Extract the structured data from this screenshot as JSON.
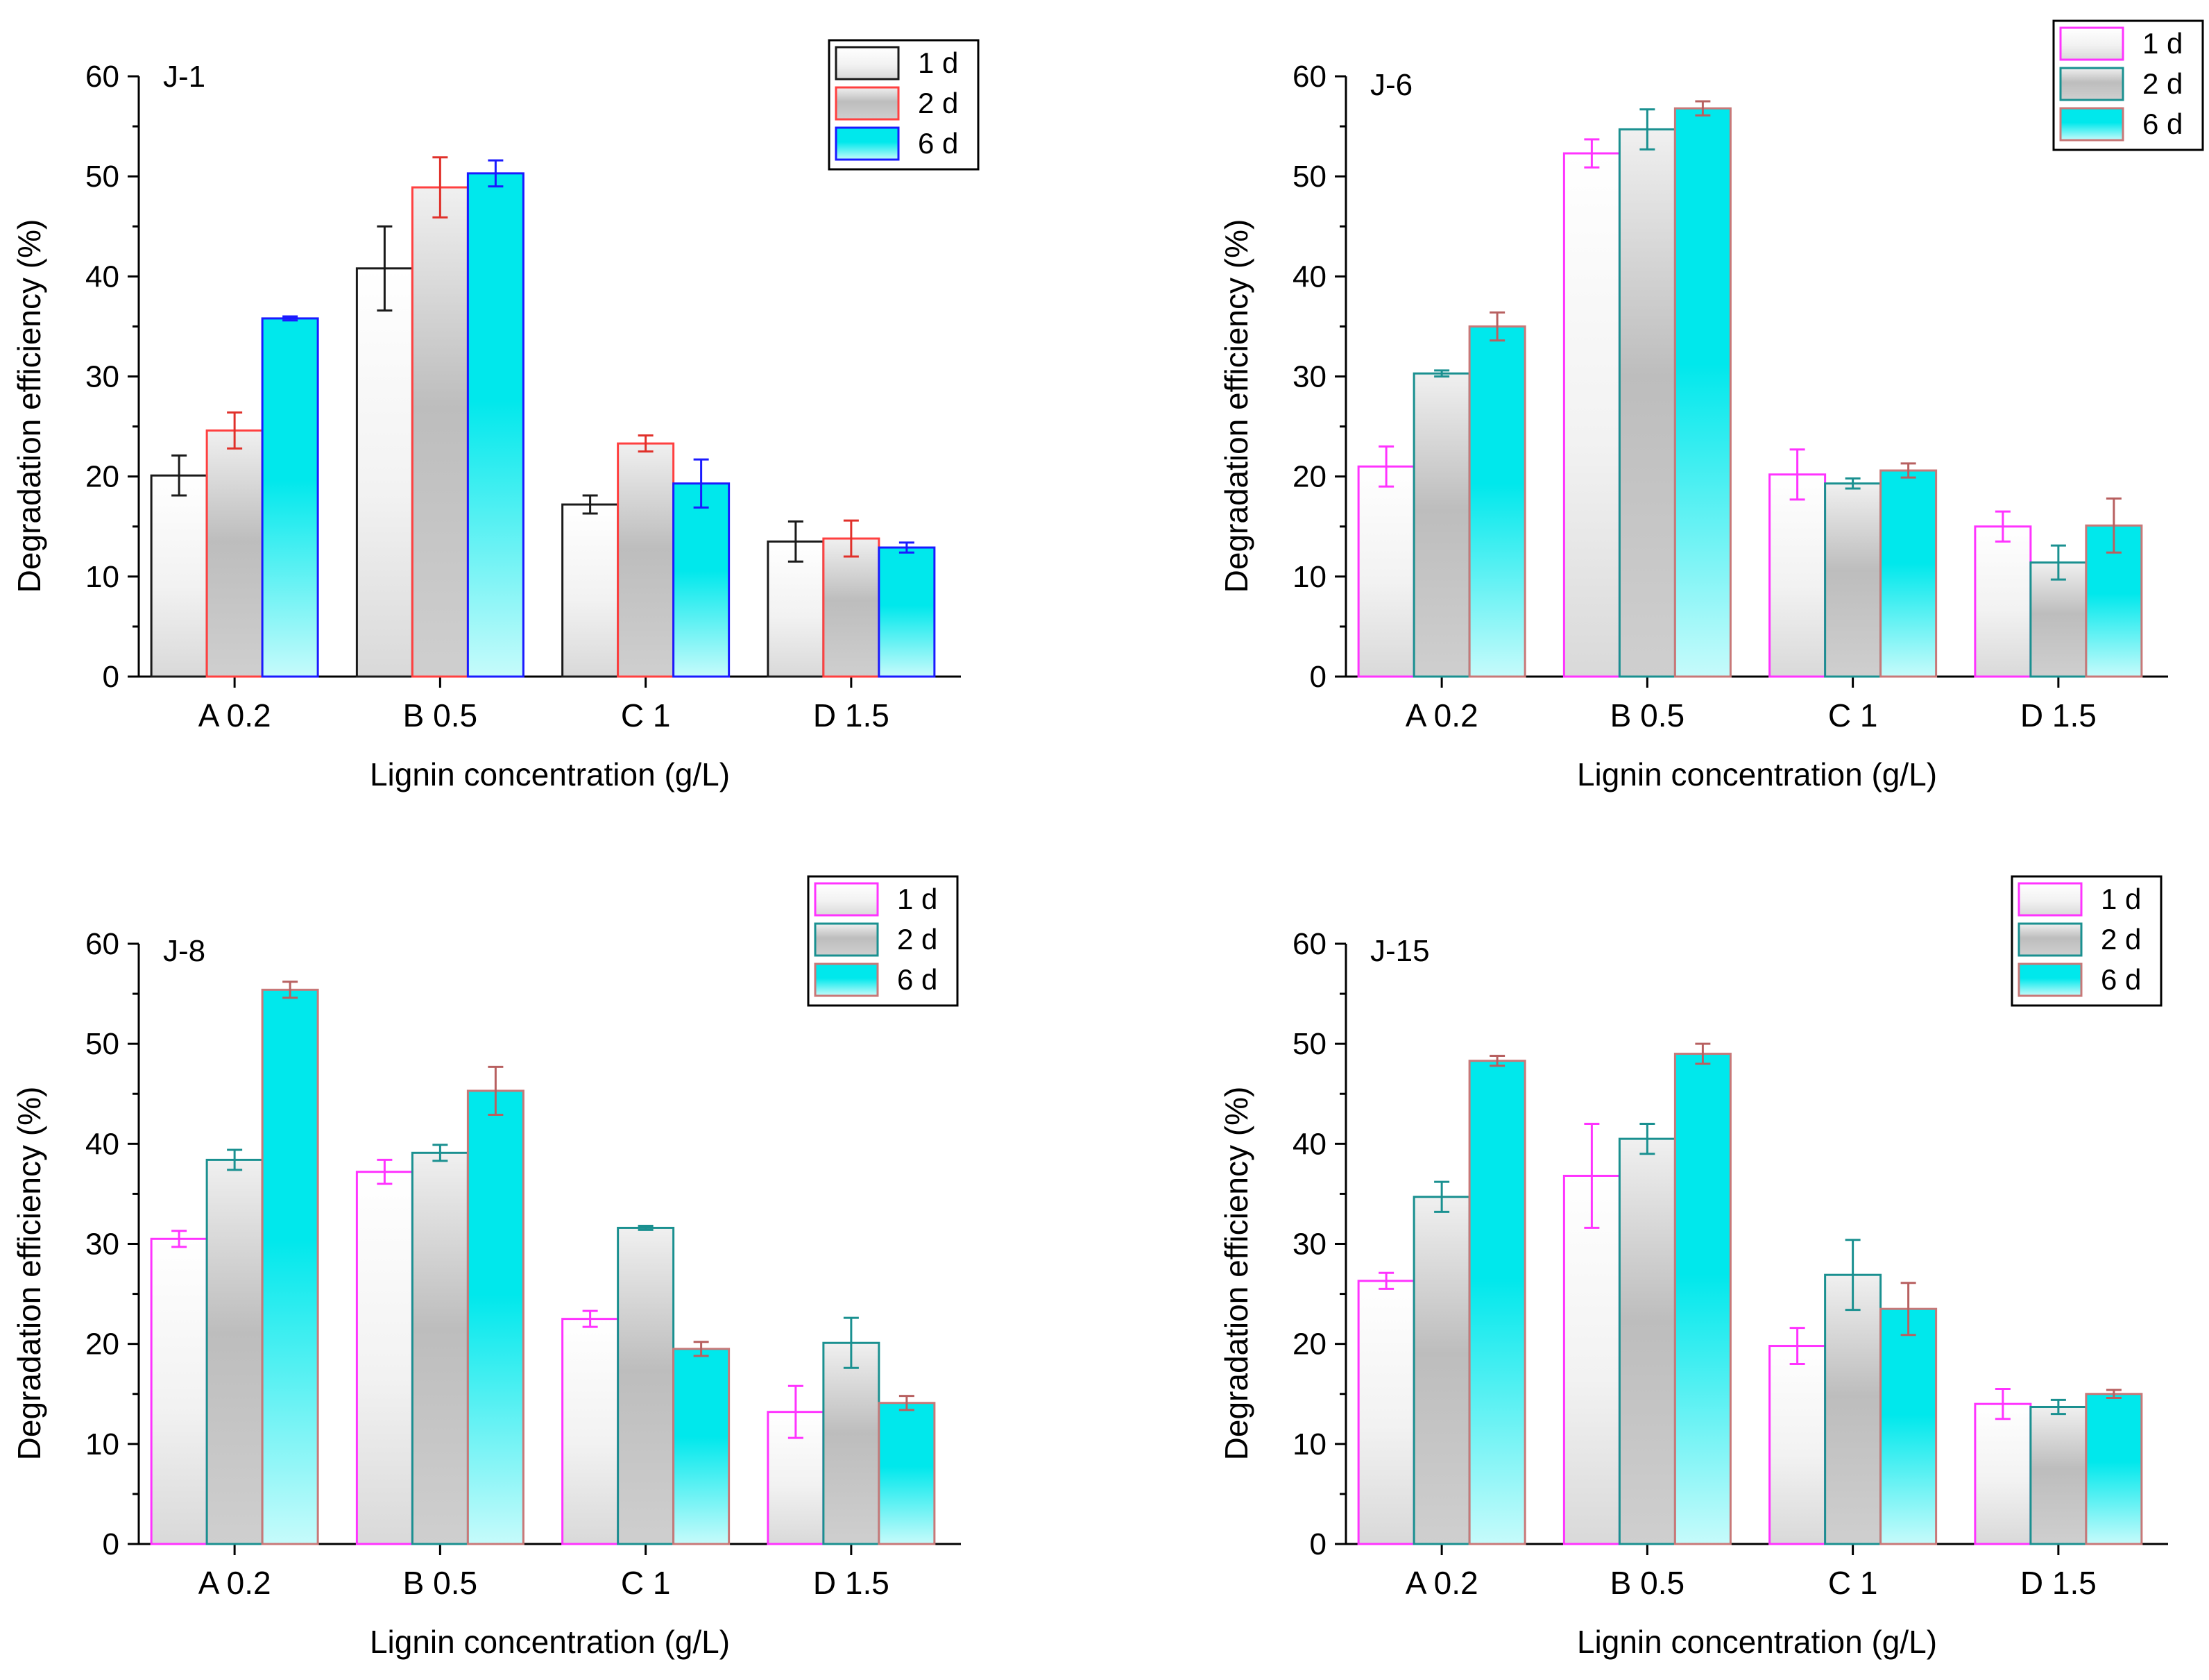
{
  "chart_data": [
    {
      "type": "bar",
      "panel": "J-1",
      "categories": [
        "A 0.2",
        "B 0.5",
        "C 1",
        "D 1.5"
      ],
      "xlabel": "Lignin concentration (g/L)",
      "ylabel": "Degradation efficiency (%)",
      "ylim": [
        0,
        60
      ],
      "yticks": [
        0,
        10,
        20,
        30,
        40,
        50,
        60
      ],
      "grid": false,
      "legend_position": "top-right",
      "series": [
        {
          "name": "1 d",
          "values": [
            20.1,
            40.8,
            17.2,
            13.5
          ],
          "errors": [
            2.0,
            4.2,
            0.9,
            2.0
          ],
          "edge_color": "#1a1a1a",
          "fill": "white-gray",
          "error_color": "#1a1a1a"
        },
        {
          "name": "2 d",
          "values": [
            24.6,
            48.9,
            23.3,
            13.8
          ],
          "errors": [
            1.8,
            3.0,
            0.8,
            1.8
          ],
          "edge_color": "#ff4040",
          "fill": "gray",
          "error_color": "#e0302a"
        },
        {
          "name": "6 d",
          "values": [
            35.8,
            50.3,
            19.3,
            12.9
          ],
          "errors": [
            0.2,
            1.3,
            2.4,
            0.5
          ],
          "edge_color": "#1a1aff",
          "fill": "cyan",
          "error_color": "#1a1aff"
        }
      ]
    },
    {
      "type": "bar",
      "panel": "J-6",
      "categories": [
        "A 0.2",
        "B 0.5",
        "C 1",
        "D 1.5"
      ],
      "xlabel": "Lignin concentration (g/L)",
      "ylabel": "Degradation efficiency (%)",
      "ylim": [
        0,
        60
      ],
      "yticks": [
        0,
        10,
        20,
        30,
        40,
        50,
        60
      ],
      "grid": false,
      "legend_position": "top-right",
      "series": [
        {
          "name": "1 d",
          "values": [
            21.0,
            52.3,
            20.2,
            15.0
          ],
          "errors": [
            2.0,
            1.4,
            2.5,
            1.5
          ],
          "edge_color": "#ff33ff",
          "fill": "white-gray",
          "error_color": "#ff33ff"
        },
        {
          "name": "2 d",
          "values": [
            30.3,
            54.7,
            19.3,
            11.4
          ],
          "errors": [
            0.3,
            2.0,
            0.5,
            1.7
          ],
          "edge_color": "#1a9090",
          "fill": "gray",
          "error_color": "#1a9090"
        },
        {
          "name": "6 d",
          "values": [
            35.0,
            56.8,
            20.6,
            15.1
          ],
          "errors": [
            1.4,
            0.7,
            0.7,
            2.7
          ],
          "edge_color": "#c87878",
          "fill": "cyan",
          "error_color": "#b86060"
        }
      ]
    },
    {
      "type": "bar",
      "panel": "J-8",
      "categories": [
        "A 0.2",
        "B 0.5",
        "C 1",
        "D 1.5"
      ],
      "xlabel": "Lignin concentration (g/L)",
      "ylabel": "Degradation efficiency (%)",
      "ylim": [
        0,
        60
      ],
      "yticks": [
        0,
        10,
        20,
        30,
        40,
        50,
        60
      ],
      "grid": false,
      "legend_position": "top-right",
      "series": [
        {
          "name": "1 d",
          "values": [
            30.5,
            37.2,
            22.5,
            13.2
          ],
          "errors": [
            0.8,
            1.2,
            0.8,
            2.6
          ],
          "edge_color": "#ff33ff",
          "fill": "white-gray",
          "error_color": "#ff33ff"
        },
        {
          "name": "2 d",
          "values": [
            38.4,
            39.1,
            31.6,
            20.1
          ],
          "errors": [
            1.0,
            0.8,
            0.2,
            2.5
          ],
          "edge_color": "#1a9090",
          "fill": "gray",
          "error_color": "#1a9090"
        },
        {
          "name": "6 d",
          "values": [
            55.4,
            45.3,
            19.5,
            14.1
          ],
          "errors": [
            0.8,
            2.4,
            0.7,
            0.7
          ],
          "edge_color": "#c87878",
          "fill": "cyan",
          "error_color": "#b86060"
        }
      ]
    },
    {
      "type": "bar",
      "panel": "J-15",
      "categories": [
        "A 0.2",
        "B 0.5",
        "C 1",
        "D 1.5"
      ],
      "xlabel": "Lignin concentration (g/L)",
      "ylabel": "Degradation efficiency (%)",
      "ylim": [
        0,
        60
      ],
      "yticks": [
        0,
        10,
        20,
        30,
        40,
        50,
        60
      ],
      "grid": false,
      "legend_position": "top-right",
      "series": [
        {
          "name": "1 d",
          "values": [
            26.3,
            36.8,
            19.8,
            14.0
          ],
          "errors": [
            0.8,
            5.2,
            1.8,
            1.5
          ],
          "edge_color": "#ff33ff",
          "fill": "white-gray",
          "error_color": "#ff33ff"
        },
        {
          "name": "2 d",
          "values": [
            34.7,
            40.5,
            26.9,
            13.7
          ],
          "errors": [
            1.5,
            1.5,
            3.5,
            0.7
          ],
          "edge_color": "#1a9090",
          "fill": "gray",
          "error_color": "#1a9090"
        },
        {
          "name": "6 d",
          "values": [
            48.3,
            49.0,
            23.5,
            15.0
          ],
          "errors": [
            0.5,
            1.0,
            2.6,
            0.4
          ],
          "edge_color": "#c87878",
          "fill": "cyan",
          "error_color": "#b86060"
        }
      ]
    }
  ]
}
